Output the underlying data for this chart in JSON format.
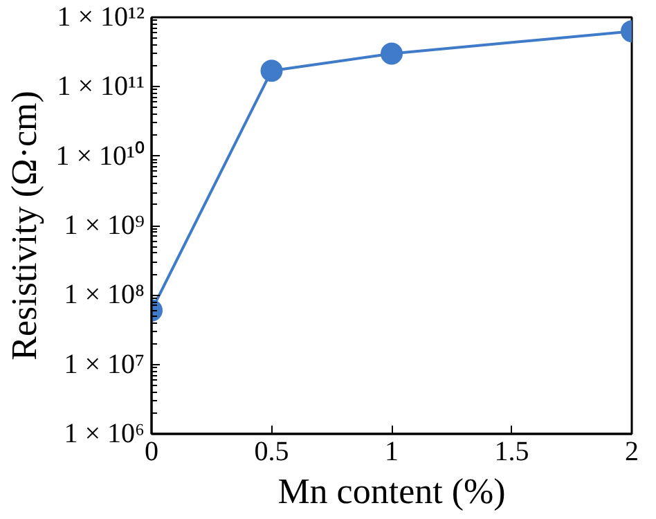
{
  "chart_data": {
    "type": "line",
    "xlabel": "Mn content (%)",
    "ylabel": "Resistivity (Ω·cm)",
    "x": [
      0,
      0.5,
      1,
      2
    ],
    "series": [
      {
        "color": "#3f7bc8",
        "values": [
          60000000.0,
          170000000000.0,
          300000000000.0,
          630000000000.0
        ]
      }
    ],
    "log": "y",
    "xlim": [
      0,
      2
    ],
    "xticks": [
      0,
      0.5,
      1,
      1.5,
      2
    ],
    "ylim": [
      1000000.0,
      1000000000000.0
    ],
    "yticks": [
      {
        "value": 1000000.0,
        "label": "1 × 10⁶"
      },
      {
        "value": 10000000.0,
        "label": "1 × 10⁷"
      },
      {
        "value": 100000000.0,
        "label": "1 × 10⁸"
      },
      {
        "value": 1000000000.0,
        "label": "1 × 10⁹"
      },
      {
        "value": 10000000000.0,
        "label": "1 × 10¹⁰"
      },
      {
        "value": 100000000000.0,
        "label": "1 × 10¹¹"
      },
      {
        "value": 1000000000000.0,
        "label": "1 × 10¹²"
      }
    ],
    "grid": false,
    "marker": "circle",
    "line_style": "solid"
  }
}
